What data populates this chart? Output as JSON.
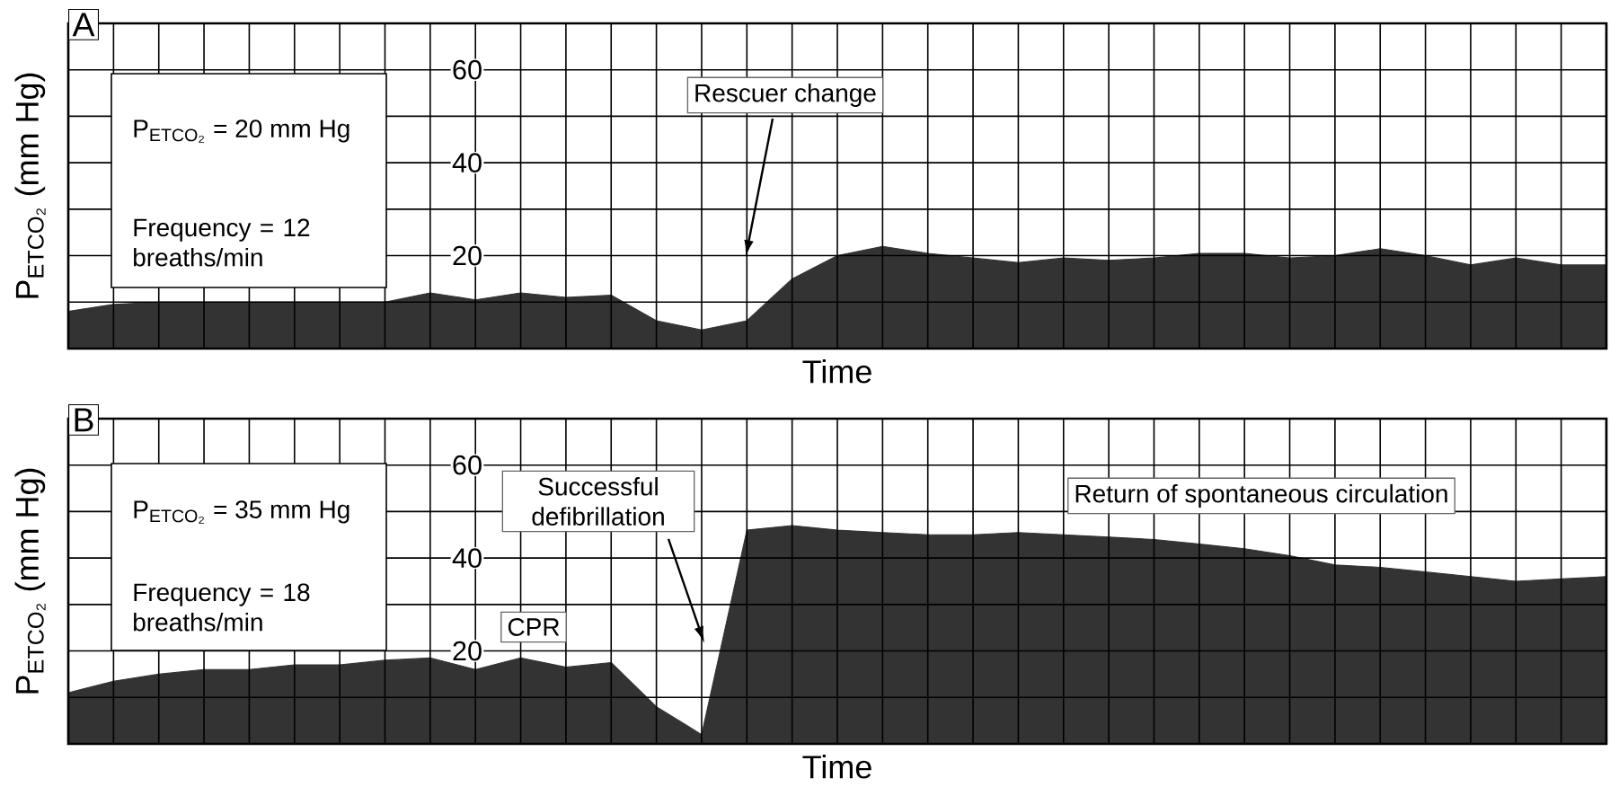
{
  "chart_data": [
    {
      "type": "area",
      "title": "A",
      "xlabel": "Time",
      "ylabel": "P$_{ETCO₂}$ (mm Hg)",
      "color": "#333333",
      "grid": true,
      "ylim": [
        0,
        70
      ],
      "yticks": [
        {
          "value": 0,
          "label": null
        },
        {
          "value": 10,
          "label": null
        },
        20,
        {
          "value": 30,
          "label": null
        },
        40,
        {
          "value": 50,
          "label": null
        },
        60,
        {
          "value": 70,
          "label": null
        }
      ],
      "categories": [
        null,
        null,
        null,
        null,
        null,
        null,
        null,
        null,
        null,
        null,
        null,
        null,
        null,
        null,
        null,
        null,
        null,
        null,
        null,
        null,
        null,
        null,
        null,
        null,
        null,
        null,
        null,
        null,
        null,
        null,
        null,
        null,
        null,
        null,
        null
      ],
      "values": [
        8,
        9.5,
        10,
        10,
        10,
        10,
        10,
        10,
        12,
        10.5,
        12,
        11,
        11.5,
        6,
        4,
        6,
        15,
        20,
        22,
        20.5,
        19.5,
        18.5,
        19.5,
        19,
        19.5,
        20.5,
        20.5,
        19.5,
        20,
        21.5,
        20,
        18,
        19.5,
        18,
        18
      ],
      "annotations": [
        "P$_{ETCO₂}$ = 20 mm Hg",
        "Frequency = 12 breaths/min",
        "Rescuer change"
      ]
    },
    {
      "type": "area",
      "title": "B",
      "xlabel": "Time",
      "ylabel": "P$_{ETCO₂}$ (mm Hg)",
      "color": "#333333",
      "grid": true,
      "ylim": [
        0,
        70
      ],
      "yticks": [
        {
          "value": 0,
          "label": null
        },
        {
          "value": 10,
          "label": null
        },
        20,
        {
          "value": 30,
          "label": null
        },
        40,
        {
          "value": 50,
          "label": null
        },
        60,
        {
          "value": 70,
          "label": null
        }
      ],
      "categories": [
        null,
        null,
        null,
        null,
        null,
        null,
        null,
        null,
        null,
        null,
        null,
        null,
        null,
        null,
        null,
        null,
        null,
        null,
        null,
        null,
        null,
        null,
        null,
        null,
        null,
        null,
        null,
        null,
        null,
        null,
        null,
        null,
        null,
        null,
        null
      ],
      "values": [
        11,
        13.5,
        15,
        16,
        16,
        17,
        17,
        18,
        18.5,
        16,
        18.5,
        16.5,
        17.5,
        8,
        2,
        46,
        47,
        46,
        45.5,
        45,
        45,
        45.5,
        45,
        44.5,
        44,
        43,
        42,
        40.5,
        38.5,
        38,
        37,
        36,
        35,
        35.5,
        36
      ],
      "annotations": [
        "P$_{ETCO₂}$ = 35 mm Hg",
        "Frequency = 18 breaths/min",
        "CPR",
        "Successful defibrillation",
        "Return of spontaneous circulation"
      ]
    }
  ]
}
